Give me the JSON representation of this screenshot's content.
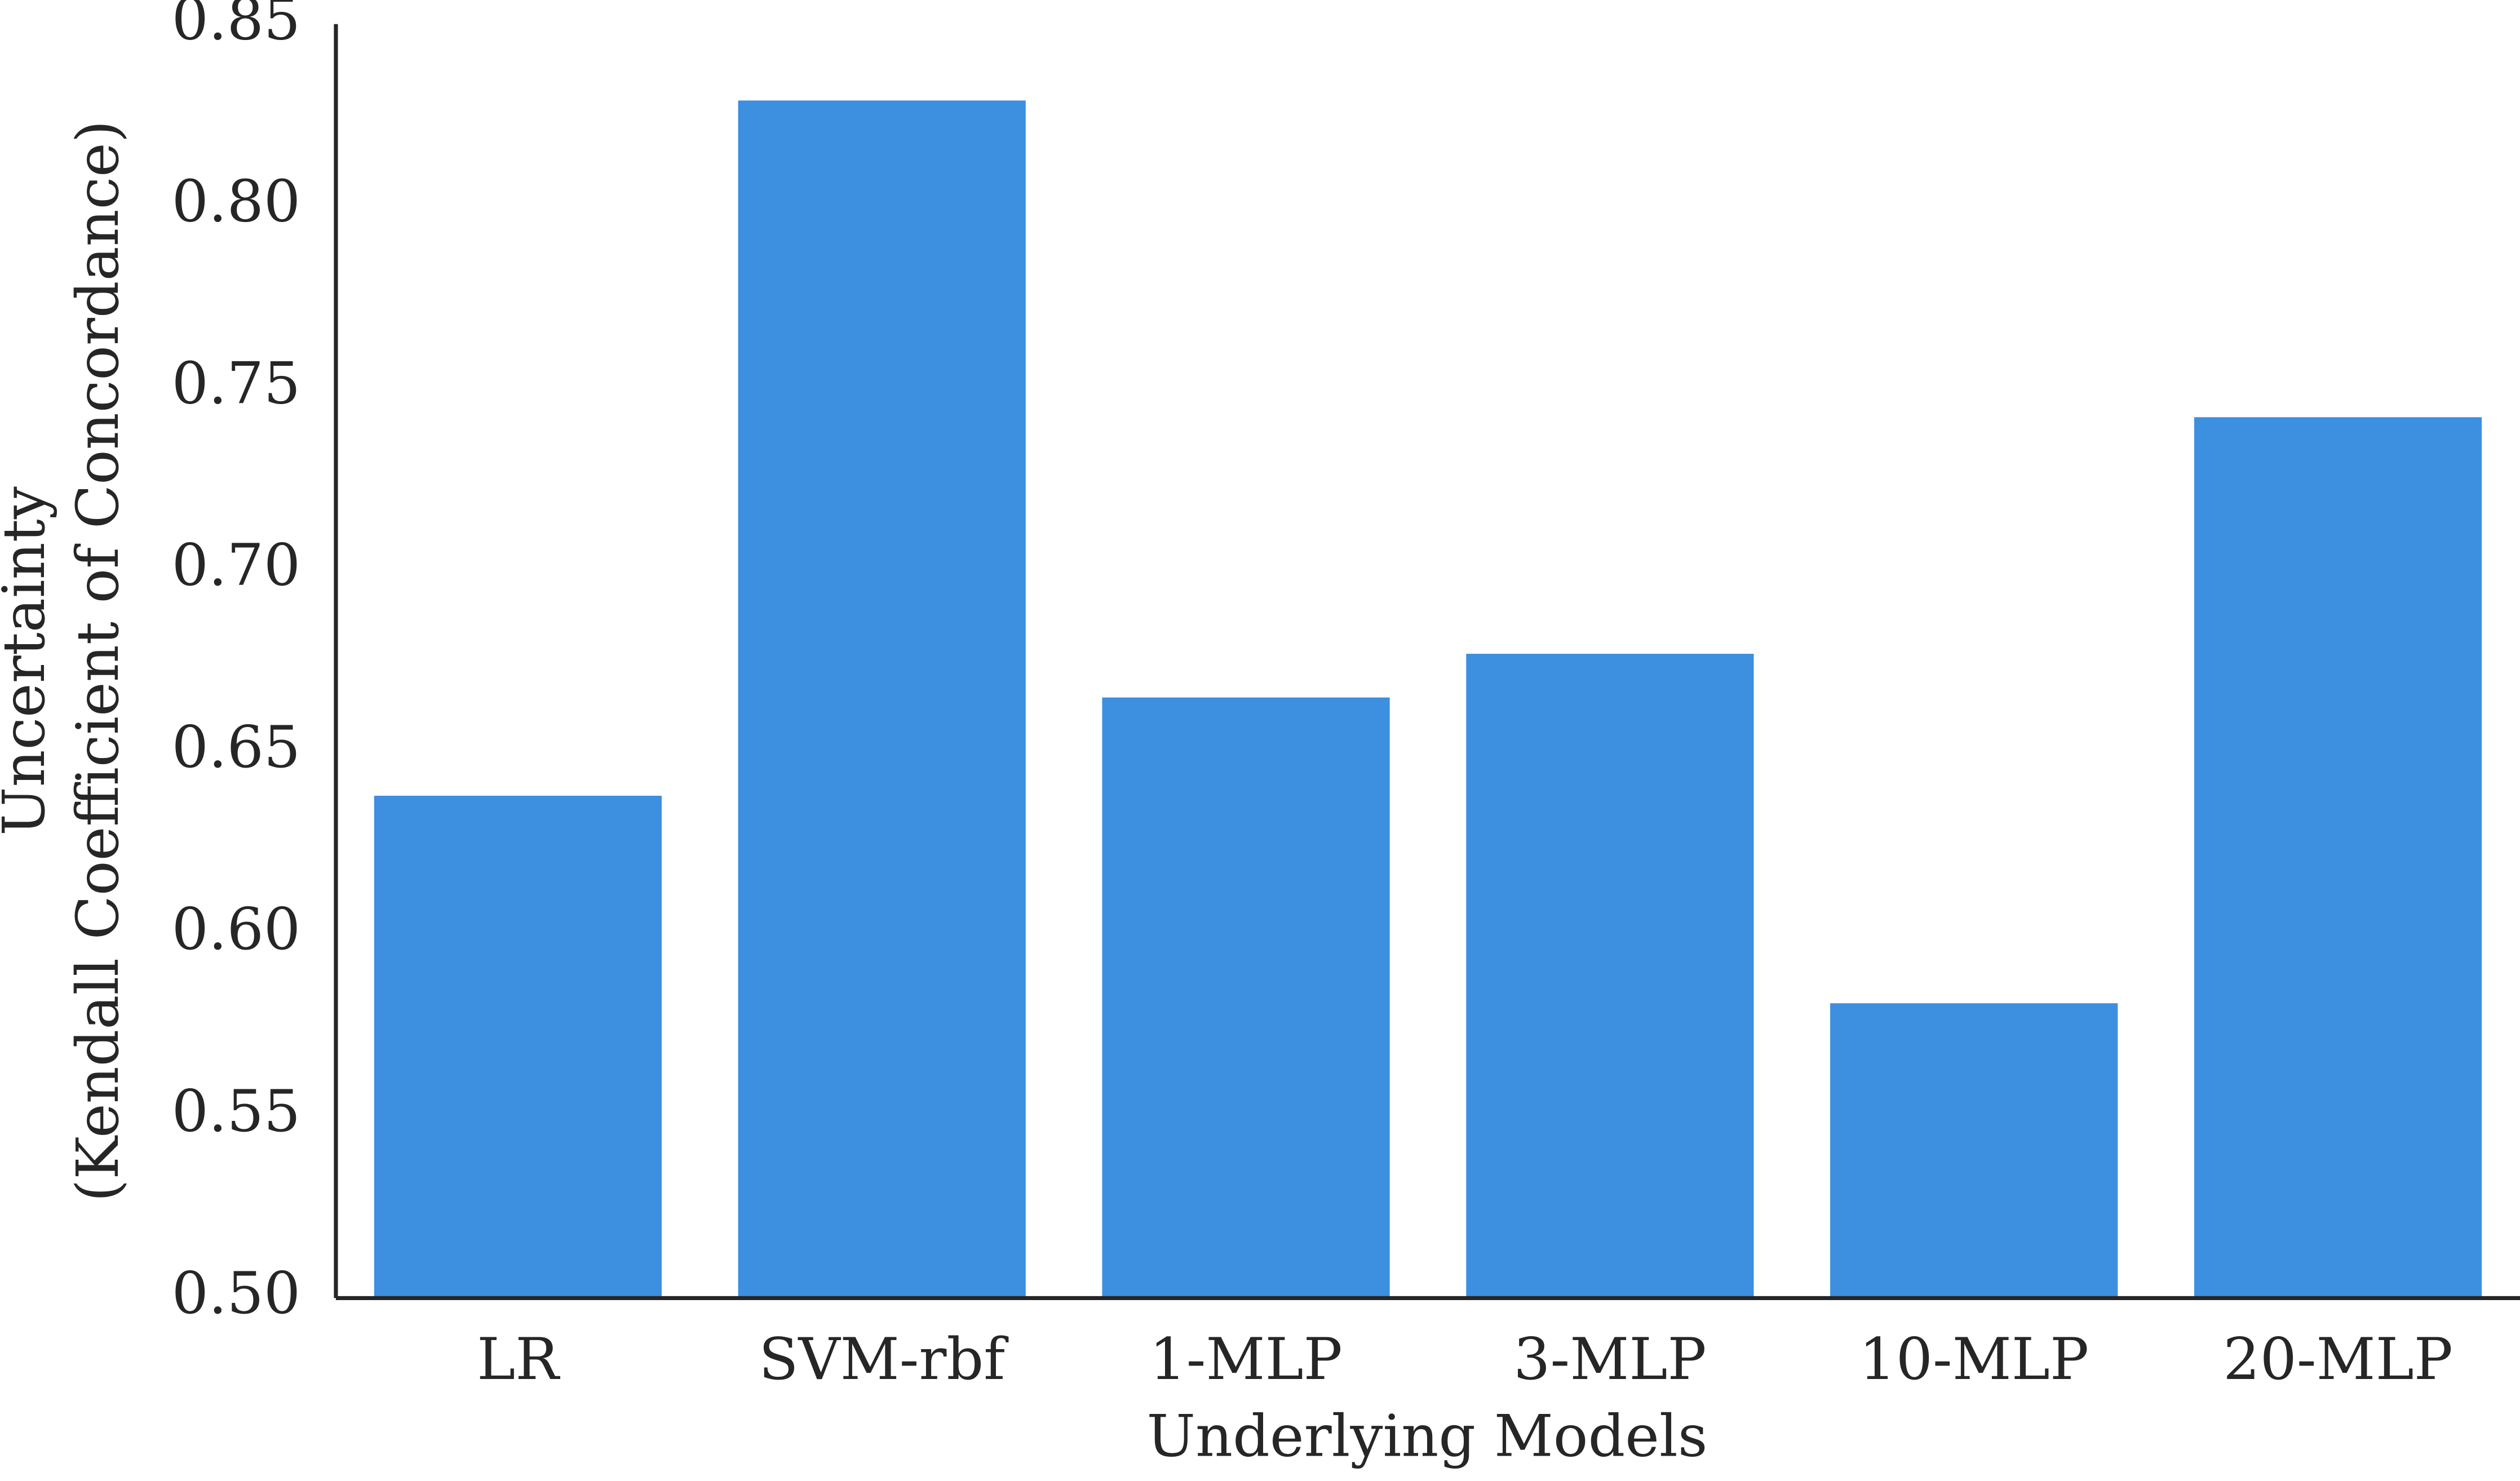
{
  "chart_data": {
    "type": "bar",
    "categories": [
      "LR",
      "SVM-rbf",
      "1-MLP",
      "3-MLP",
      "10-MLP",
      "20-MLP"
    ],
    "values": [
      0.638,
      0.829,
      0.665,
      0.677,
      0.581,
      0.742
    ],
    "color": "#3d8fe0",
    "xlabel": "Underlying Models",
    "ylabel": [
      "Uncertainty",
      "(Kendall Coefficient of Concordance)"
    ],
    "ylim": [
      0.5,
      0.85
    ],
    "yticks": [
      {
        "value": 0.5,
        "label": "0.50"
      },
      {
        "value": 0.55,
        "label": "0.55"
      },
      {
        "value": 0.6,
        "label": "0.60"
      },
      {
        "value": 0.65,
        "label": "0.65"
      },
      {
        "value": 0.7,
        "label": "0.70"
      },
      {
        "value": 0.75,
        "label": "0.75"
      },
      {
        "value": 0.8,
        "label": "0.80"
      },
      {
        "value": 0.85,
        "label": "0.85"
      }
    ],
    "grid": false
  }
}
